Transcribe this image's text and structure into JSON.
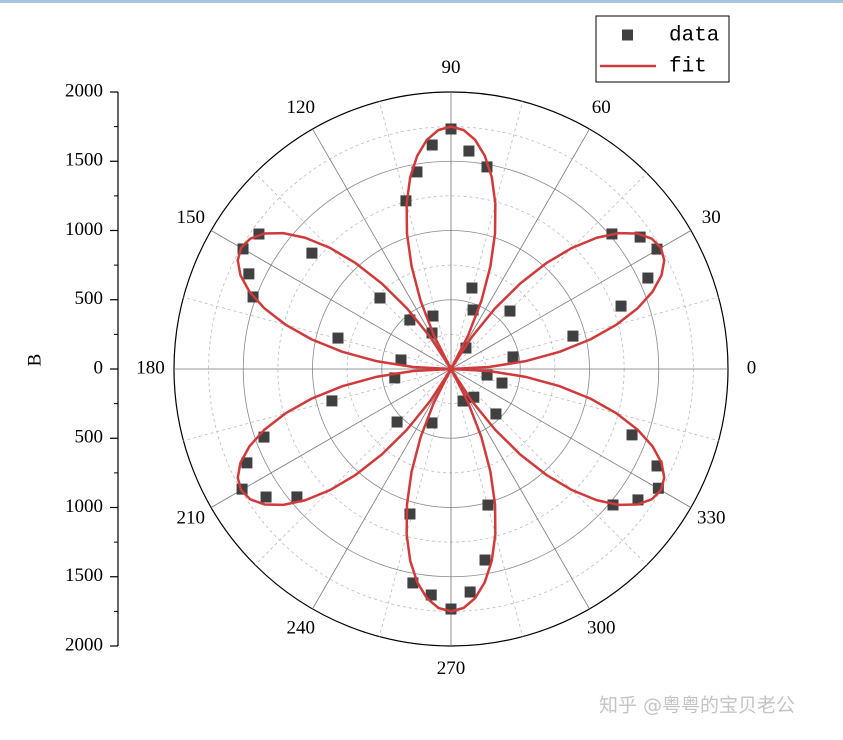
{
  "chart_data": {
    "type": "polar",
    "y_label": "B",
    "ylim": [
      -2000,
      2000
    ],
    "yticks": [
      2000,
      1500,
      1000,
      500,
      0,
      {
        "value": -500,
        "label": "500"
      },
      {
        "value": -1000,
        "label": "1000"
      },
      {
        "value": -1500,
        "label": "1500"
      },
      {
        "value": -2000,
        "label": "2000"
      }
    ],
    "thetaticks": [
      0,
      30,
      60,
      90,
      120,
      150,
      180,
      210,
      240,
      270,
      300,
      330
    ],
    "grid": true,
    "legend": "top-right",
    "watermark": "知乎 @粤粤的宝贝老公",
    "series": [
      {
        "name": "data",
        "color": "#404040",
        "mode": "markers",
        "theta": [
          90,
          94.8,
          85.3,
          79.9,
          99.8,
          105,
          75.5,
          69.5,
          108.8,
          117.8,
          130,
          40,
          34.9,
          30.2,
          24.8,
          20.3,
          15.1,
          44.5,
          11,
          54.5,
          144.9,
          150,
          154.8,
          160,
          140.2,
          135,
          164.7,
          169.8,
          200,
          204.7,
          209.9,
          214.7,
          219.7,
          195,
          189,
          224.5,
          270,
          265,
          259.9,
          274.9,
          280.1,
          285.2,
          254.2,
          250.6,
          290.6,
          330.1,
          334.8,
          340,
          325,
          320,
          315,
          344.6,
          350.5,
          309
        ],
        "r": [
          1733,
          1623,
          1579,
          1482,
          1444,
          1257,
          604,
          455,
          404,
          294,
          462,
          1517,
          1665,
          1721,
          1566,
          1309,
          912,
          597,
          456,
          186,
          1695,
          1734,
          1613,
          1521,
          1307,
          725,
          846,
          367,
          1437,
          1622,
          1740,
          1624,
          1446,
          890,
          411,
          546,
          1733,
          1638,
          1569,
          1616,
          1401,
          1018,
          1088,
          413,
          247,
          1727,
          1644,
          1391,
          1648,
          1527,
          459,
          382,
          264,
          262
        ]
      },
      {
        "name": "fit",
        "color": "#d03a3a",
        "mode": "lines",
        "theta": [
          0,
          3,
          6,
          9,
          12,
          15,
          18,
          21,
          24,
          27,
          30,
          33,
          36,
          39,
          42,
          45,
          48,
          51,
          54,
          57,
          60,
          63,
          66,
          69,
          72,
          75,
          78,
          81,
          84,
          87,
          90,
          93,
          96,
          99,
          102,
          105,
          108,
          111,
          114,
          117,
          120,
          123,
          126,
          129,
          132,
          135,
          138,
          141,
          144,
          147,
          150,
          153,
          156,
          159,
          162,
          165,
          168,
          171,
          174,
          177,
          180,
          183,
          186,
          189,
          192,
          195,
          198,
          201,
          204,
          207,
          210,
          213,
          216,
          219,
          222,
          225,
          228,
          231,
          234,
          237,
          240,
          243,
          246,
          249,
          252,
          255,
          258,
          261,
          264,
          267,
          270,
          273,
          276,
          279,
          282,
          285,
          288,
          291,
          294,
          297,
          300,
          303,
          306,
          309,
          312,
          315,
          318,
          321,
          324,
          327,
          330,
          333,
          336,
          339,
          342,
          345,
          348,
          351,
          354,
          357,
          360
        ],
        "r": [
          0,
          274,
          541,
          794,
          1029,
          1237,
          1416,
          1559,
          1664,
          1728,
          1750,
          1728,
          1664,
          1559,
          1416,
          1237,
          1029,
          794,
          541,
          274,
          0,
          274,
          541,
          794,
          1029,
          1237,
          1416,
          1559,
          1664,
          1728,
          1750,
          1728,
          1664,
          1559,
          1416,
          1237,
          1029,
          794,
          541,
          274,
          0,
          274,
          541,
          794,
          1029,
          1237,
          1416,
          1559,
          1664,
          1728,
          1750,
          1728,
          1664,
          1559,
          1416,
          1237,
          1029,
          794,
          541,
          274,
          0,
          274,
          541,
          794,
          1029,
          1237,
          1416,
          1559,
          1664,
          1728,
          1750,
          1728,
          1664,
          1559,
          1416,
          1237,
          1029,
          794,
          541,
          274,
          0,
          274,
          541,
          794,
          1029,
          1237,
          1416,
          1559,
          1664,
          1728,
          1750,
          1728,
          1664,
          1559,
          1416,
          1237,
          1029,
          794,
          541,
          274,
          0,
          274,
          541,
          794,
          1029,
          1237,
          1416,
          1559,
          1664,
          1728,
          1750,
          1728,
          1664,
          1559,
          1416,
          1237,
          1029,
          794,
          541,
          274,
          0
        ]
      }
    ]
  }
}
